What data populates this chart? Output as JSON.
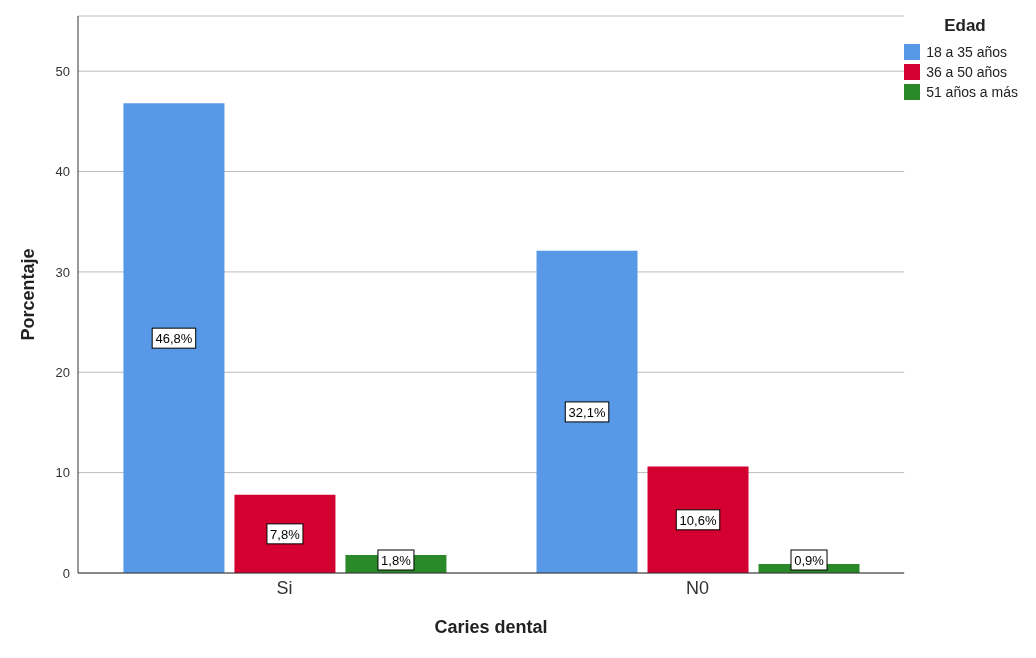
{
  "chart_data": {
    "type": "bar",
    "xlabel": "Caries dental",
    "ylabel": "Porcentaje",
    "legend_title": "Edad",
    "legend": "top right",
    "grid": "y",
    "categories": [
      "Si",
      "N0"
    ],
    "series": [
      {
        "name": "18 a 35 años",
        "color": "#5799e6",
        "values": [
          46.8,
          32.1
        ],
        "value_labels": [
          "46,8%",
          "32,1%"
        ]
      },
      {
        "name": "36 a 50 años",
        "color": "#d4002f",
        "values": [
          7.8,
          10.6
        ],
        "value_labels": [
          "7,8%",
          "10,6%"
        ]
      },
      {
        "name": "51 años a más",
        "color": "#2a8a2a",
        "values": [
          1.8,
          0.9
        ],
        "value_labels": [
          "1,8%",
          "0,9%"
        ]
      }
    ],
    "ylim": [
      0,
      55.5
    ],
    "yticks": [
      0,
      10,
      20,
      30,
      40,
      50
    ]
  }
}
